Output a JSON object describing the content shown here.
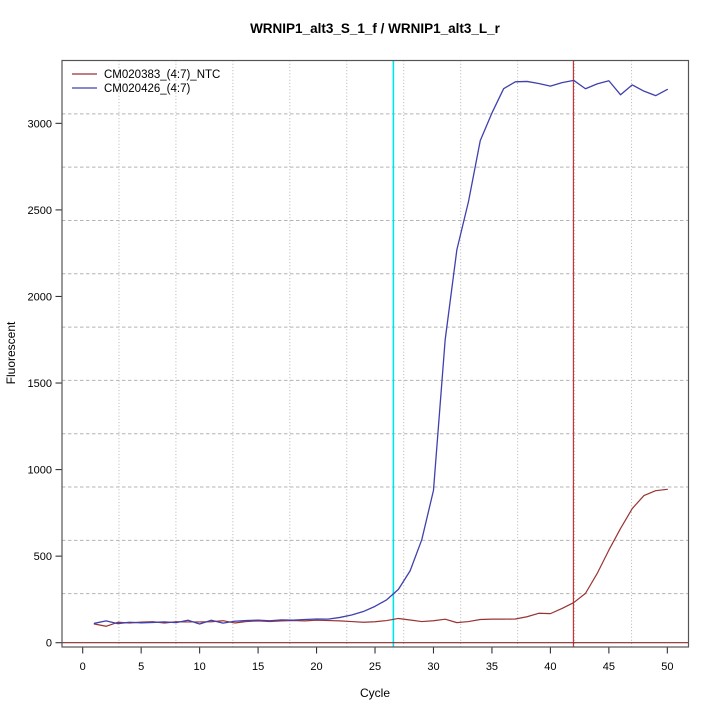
{
  "window": {
    "title": "WRNIP1_alt3_S_1_f / WRNIP1_alt3_L_r"
  },
  "chart_data": {
    "type": "line",
    "title": "WRNIP1_alt3_S_1_f / WRNIP1_alt3_L_r",
    "xlabel": "Cycle",
    "ylabel": "Fluorescent",
    "x_ticks": [
      0,
      5,
      10,
      15,
      20,
      25,
      30,
      35,
      40,
      45,
      50
    ],
    "y_ticks": [
      0,
      500,
      1000,
      1500,
      2000,
      2500,
      3000
    ],
    "x_range": [
      -1.77,
      51.81
    ],
    "y_range": [
      -24.8,
      3363
    ],
    "grid": {
      "on": true,
      "nx": 11,
      "ny": 11,
      "style": "dotted",
      "color": "#b4b4b4"
    },
    "legend_position": "top-left",
    "frame_color": "#555555",
    "tick_color": "#333333",
    "series": [
      {
        "name": "CM020383_(4:7)_NTC",
        "color": "#993333",
        "line_width": 1.2,
        "cycle_start": 1,
        "values": [
          108,
          95,
          118,
          114,
          119,
          121,
          114,
          121,
          120,
          120,
          121,
          127,
          114,
          122,
          126,
          122,
          126,
          128,
          126,
          130,
          128,
          126,
          122,
          118,
          121,
          128,
          140,
          131,
          122,
          127,
          136,
          116,
          122,
          134,
          136,
          136,
          137,
          150,
          170,
          168,
          198,
          232,
          285,
          400,
          535,
          660,
          775,
          850,
          878,
          886
        ]
      },
      {
        "name": "CM020426_(4:7)",
        "color": "#4040ae",
        "line_width": 1.3,
        "cycle_start": 1,
        "values": [
          112,
          126,
          110,
          118,
          115,
          117,
          120,
          116,
          130,
          108,
          130,
          113,
          124,
          128,
          130,
          127,
          132,
          130,
          134,
          137,
          136,
          146,
          160,
          180,
          210,
          248,
          308,
          415,
          595,
          880,
          1750,
          2270,
          2550,
          2900,
          3060,
          3200,
          3240,
          3242,
          3230,
          3215,
          3235,
          3248,
          3200,
          3228,
          3246,
          3165,
          3222,
          3186,
          3160,
          3196
        ]
      }
    ],
    "vlines": [
      {
        "x": 26.57,
        "color": "#00e5e5",
        "width": 1.6
      },
      {
        "x": 41.97,
        "color": "#cc3333",
        "width": 1.2
      }
    ],
    "hlines": [
      {
        "y": 0,
        "color": "#8b2a2a",
        "width": 1.2
      }
    ]
  }
}
